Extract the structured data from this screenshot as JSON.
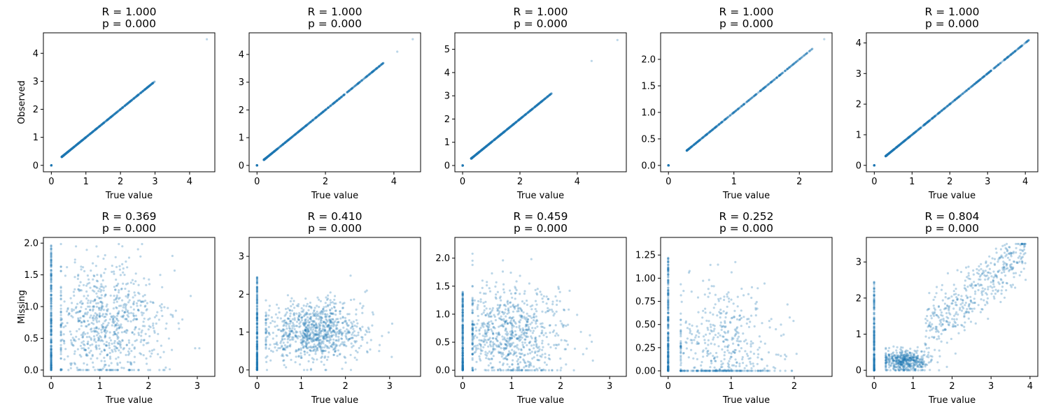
{
  "chart_data": [
    {
      "type": "scatter",
      "row": "Observed",
      "title_r": "R = 1.000",
      "title_p": "p = 0.000",
      "xlabel": "True value",
      "ylabel": "Observed",
      "xlim": [
        -0.23,
        4.73
      ],
      "ylim": [
        -0.23,
        4.73
      ],
      "xticks": [
        0,
        1,
        2,
        3,
        4
      ],
      "yticks": [
        0,
        1,
        2,
        3,
        4
      ],
      "color": "#1f77b4",
      "pattern": "identity",
      "n": 800,
      "range": [
        0.3,
        3.0
      ],
      "outliers": [
        [
          4.5,
          4.5
        ]
      ],
      "zero_cluster": true
    },
    {
      "type": "scatter",
      "row": "Observed",
      "title_r": "R = 1.000",
      "title_p": "p = 0.000",
      "xlabel": "True value",
      "ylabel": "",
      "xlim": [
        -0.23,
        4.78
      ],
      "ylim": [
        -0.23,
        4.78
      ],
      "xticks": [
        0,
        2,
        4
      ],
      "yticks": [
        0,
        1,
        2,
        3,
        4
      ],
      "color": "#1f77b4",
      "pattern": "identity",
      "n": 800,
      "range": [
        0.2,
        3.7
      ],
      "outliers": [
        [
          4.1,
          4.1
        ],
        [
          4.55,
          4.55
        ]
      ],
      "zero_cluster": true
    },
    {
      "type": "scatter",
      "row": "Observed",
      "title_r": "R = 1.000",
      "title_p": "p = 0.000",
      "xlabel": "True value",
      "ylabel": "",
      "xlim": [
        -0.27,
        5.71
      ],
      "ylim": [
        -0.27,
        5.71
      ],
      "xticks": [
        0,
        2,
        4
      ],
      "yticks": [
        0,
        1,
        2,
        3,
        4,
        5
      ],
      "color": "#1f77b4",
      "pattern": "identity",
      "n": 800,
      "range": [
        0.3,
        3.1
      ],
      "outliers": [
        [
          4.5,
          4.5
        ],
        [
          5.4,
          5.4
        ]
      ],
      "zero_cluster": true
    },
    {
      "type": "scatter",
      "row": "Observed",
      "title_r": "R = 1.000",
      "title_p": "p = 0.000",
      "xlabel": "True value",
      "ylabel": "",
      "xlim": [
        -0.12,
        2.5
      ],
      "ylim": [
        -0.12,
        2.5
      ],
      "xticks": [
        0,
        1,
        2
      ],
      "yticks": [
        0.0,
        0.5,
        1.0,
        1.5,
        2.0
      ],
      "ytickfmt": 1,
      "color": "#1f77b4",
      "pattern": "identity",
      "n": 500,
      "range": [
        0.28,
        2.2
      ],
      "outliers": [
        [
          2.38,
          2.38
        ]
      ],
      "zero_cluster": true
    },
    {
      "type": "scatter",
      "row": "Observed",
      "title_r": "R = 1.000",
      "title_p": "p = 0.000",
      "xlabel": "True value",
      "ylabel": "",
      "xlim": [
        -0.21,
        4.33
      ],
      "ylim": [
        -0.21,
        4.33
      ],
      "xticks": [
        0,
        1,
        2,
        3,
        4
      ],
      "yticks": [
        0,
        1,
        2,
        3,
        4
      ],
      "color": "#1f77b4",
      "pattern": "identity",
      "n": 800,
      "range": [
        0.3,
        4.1
      ],
      "outliers": [],
      "zero_cluster": true
    },
    {
      "type": "scatter",
      "row": "Missing",
      "title_r": "R = 0.369",
      "title_p": "p = 0.000",
      "xlabel": "True value",
      "ylabel": "Missing",
      "xlim": [
        -0.16,
        3.36
      ],
      "ylim": [
        -0.1,
        2.09
      ],
      "xticks": [
        0,
        1,
        2,
        3
      ],
      "yticks": [
        0.0,
        0.5,
        1.0,
        1.5,
        2.0
      ],
      "ytickfmt": 1,
      "color": "#1f77b4",
      "pattern": "noisy",
      "n": 800,
      "xcenter": 1.1,
      "xspread": 0.6,
      "ycenter": 0.75,
      "yspread": 0.45,
      "zero_col_max": 2.0
    },
    {
      "type": "scatter",
      "row": "Missing",
      "title_r": "R = 0.410",
      "title_p": "p = 0.000",
      "xlabel": "True value",
      "ylabel": "",
      "xlim": [
        -0.18,
        3.7
      ],
      "ylim": [
        -0.17,
        3.5
      ],
      "xticks": [
        0,
        1,
        2,
        3
      ],
      "yticks": [
        0,
        1,
        2,
        3
      ],
      "color": "#1f77b4",
      "pattern": "noisy",
      "n": 900,
      "xcenter": 1.3,
      "xspread": 0.55,
      "ycenter": 1.0,
      "yspread": 0.4,
      "zero_col_max": 2.45
    },
    {
      "type": "scatter",
      "row": "Missing",
      "title_r": "R = 0.459",
      "title_p": "p = 0.000",
      "xlabel": "True value",
      "ylabel": "",
      "xlim": [
        -0.16,
        3.34
      ],
      "ylim": [
        -0.11,
        2.37
      ],
      "xticks": [
        0,
        1,
        2,
        3
      ],
      "yticks": [
        0.0,
        0.5,
        1.0,
        1.5,
        2.0
      ],
      "ytickfmt": 1,
      "color": "#1f77b4",
      "pattern": "noisy",
      "n": 800,
      "xcenter": 1.0,
      "xspread": 0.55,
      "ycenter": 0.65,
      "yspread": 0.45,
      "zero_col_max": 1.4
    },
    {
      "type": "scatter",
      "row": "Missing",
      "title_r": "R = 0.252",
      "title_p": "p = 0.000",
      "xlabel": "True value",
      "ylabel": "",
      "xlim": [
        -0.12,
        2.6
      ],
      "ylim": [
        -0.06,
        1.44
      ],
      "xticks": [
        0,
        1,
        2
      ],
      "yticks": [
        0.0,
        0.25,
        0.5,
        0.75,
        1.0,
        1.25
      ],
      "ytickfmt": 2,
      "color": "#1f77b4",
      "pattern": "noisy",
      "n": 500,
      "xcenter": 0.85,
      "xspread": 0.45,
      "ycenter": 0.2,
      "yspread": 0.35,
      "zero_col_max": 1.25
    },
    {
      "type": "scatter",
      "row": "Missing",
      "title_r": "R = 0.804",
      "title_p": "p = 0.000",
      "xlabel": "True value",
      "ylabel": "",
      "xlim": [
        -0.2,
        4.2
      ],
      "ylim": [
        -0.17,
        3.68
      ],
      "xticks": [
        0,
        1,
        2,
        3,
        4
      ],
      "yticks": [
        0,
        1,
        2,
        3
      ],
      "color": "#1f77b4",
      "pattern": "correlated",
      "n": 900,
      "zero_col_max": 2.45
    }
  ]
}
